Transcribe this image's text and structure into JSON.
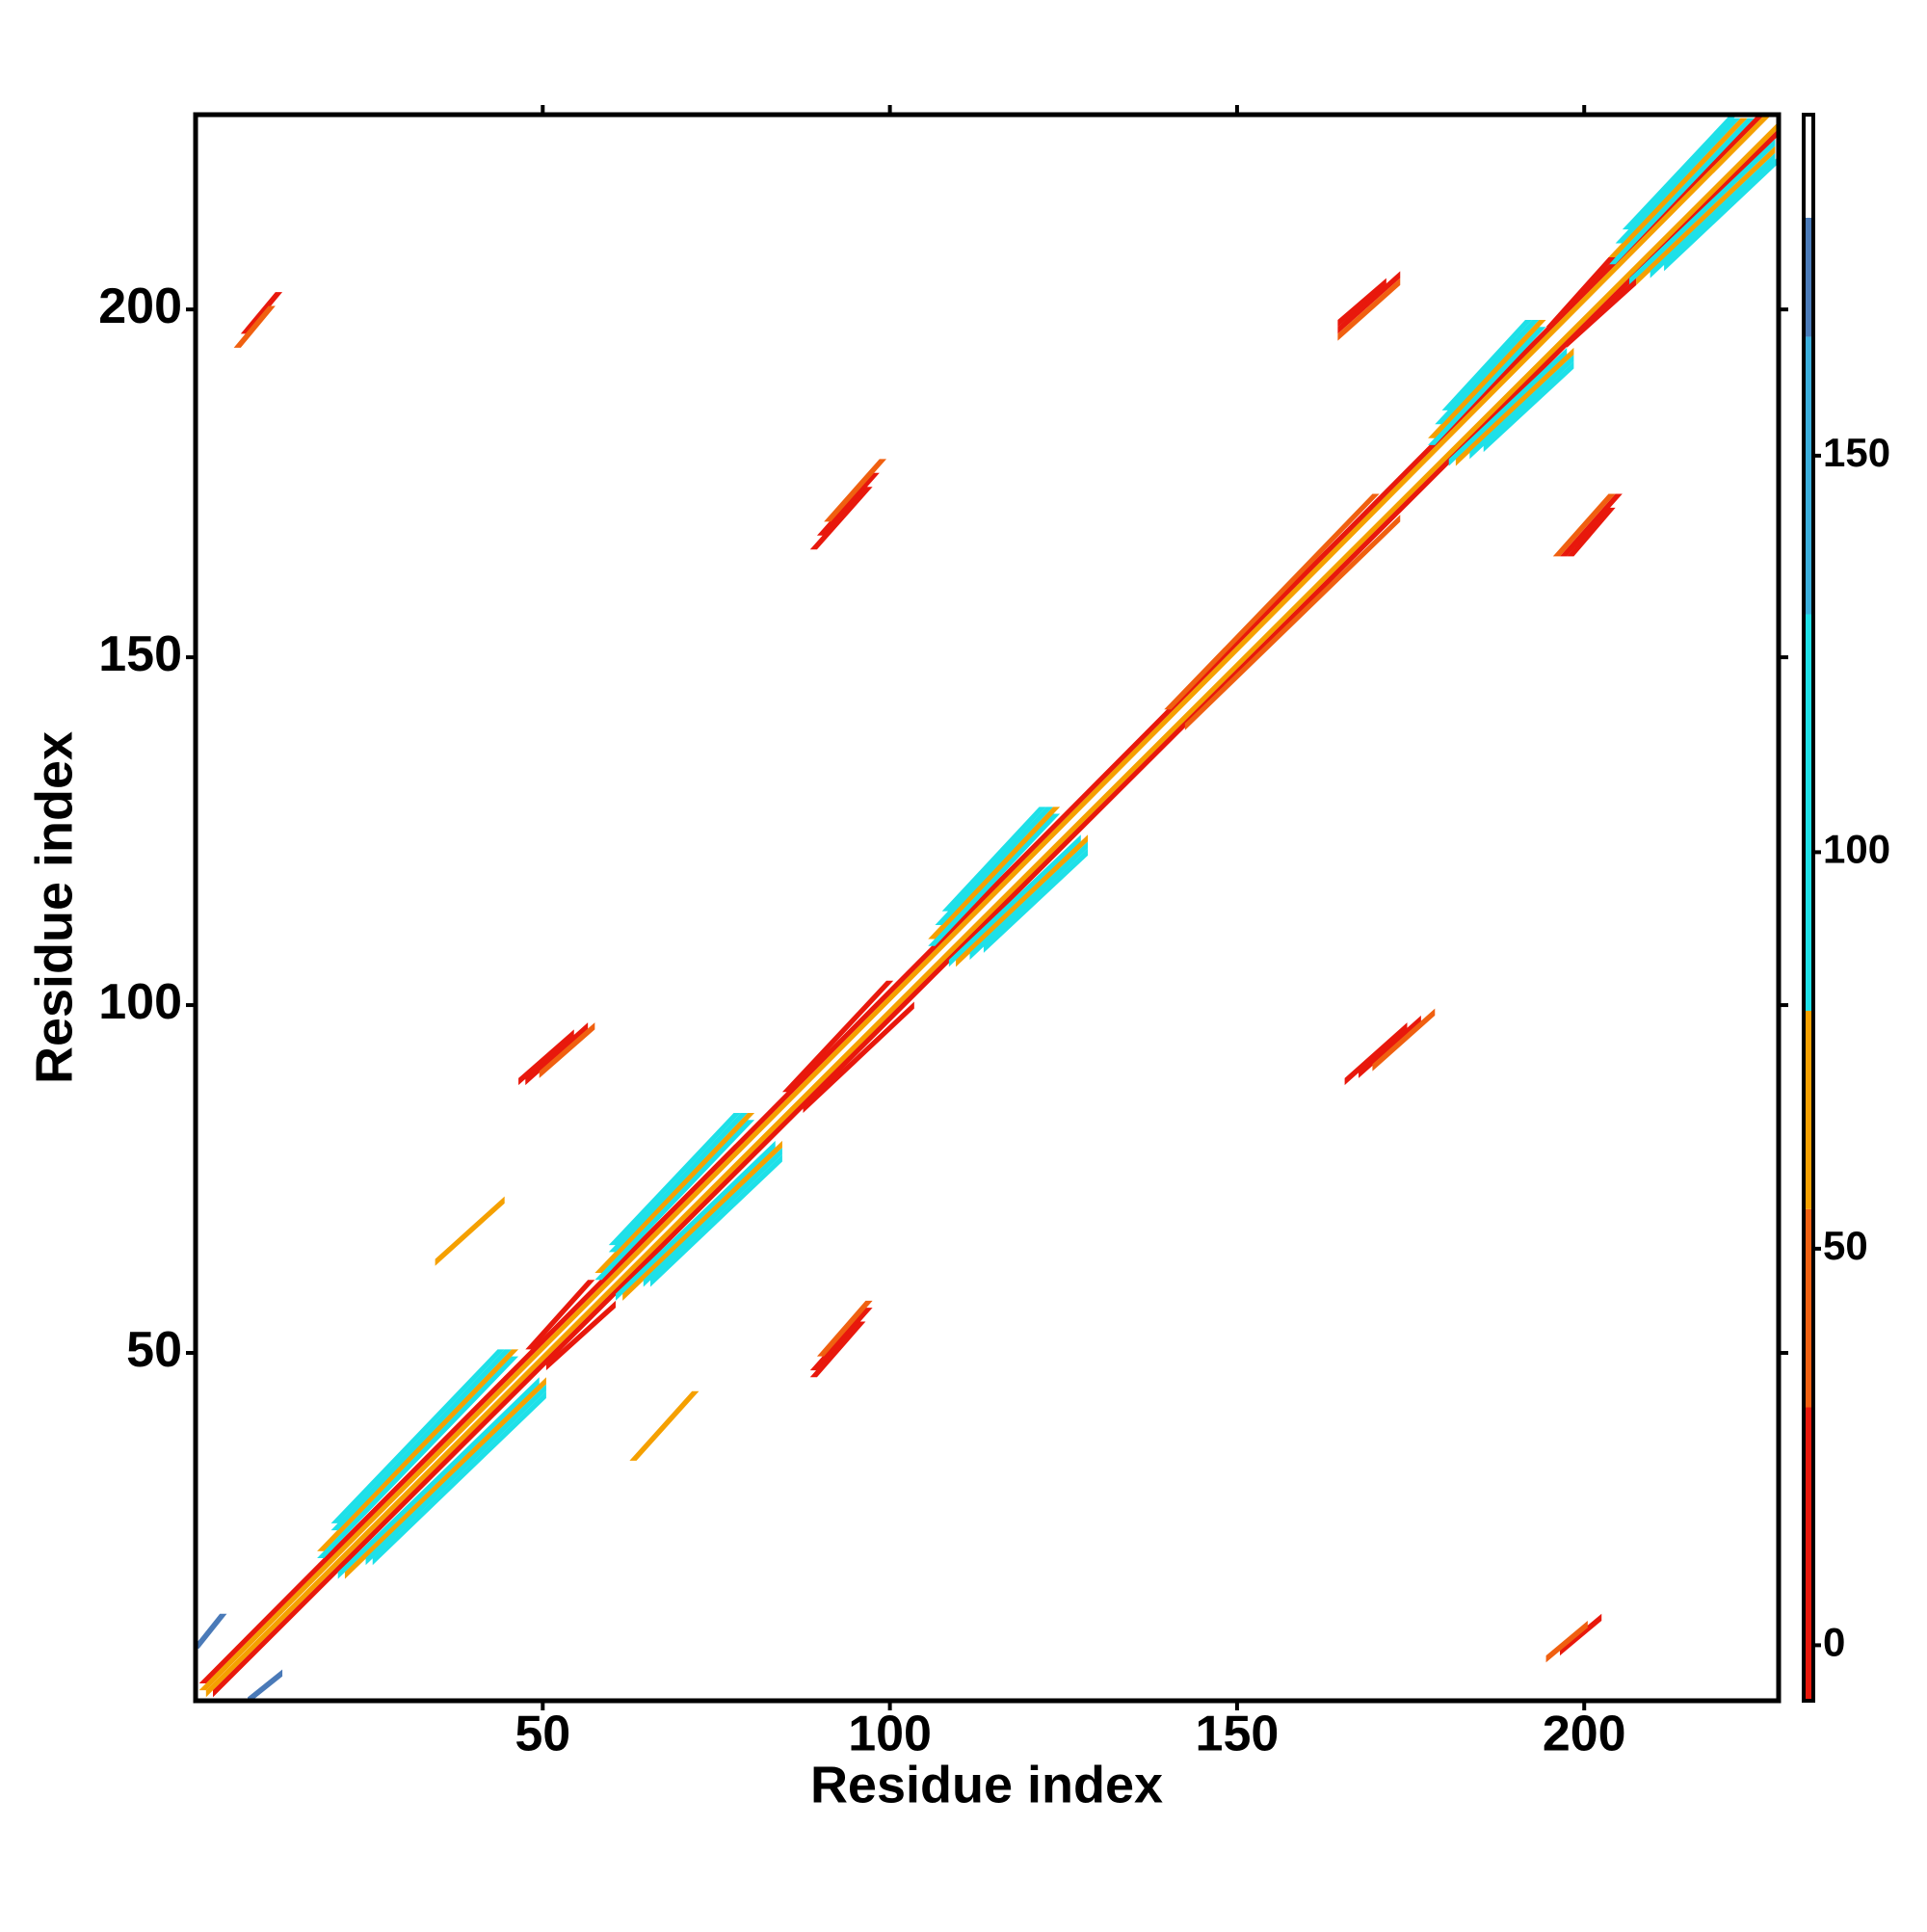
{
  "chart_data": {
    "type": "heatmap",
    "xlabel": "Residue index",
    "ylabel": "Residue index",
    "xlim": [
      0,
      228
    ],
    "ylim": [
      0,
      228
    ],
    "xticks": [
      50,
      100,
      150,
      200
    ],
    "yticks": [
      50,
      100,
      150,
      200
    ],
    "colorbar": {
      "lim": [
        -7,
        193
      ],
      "ticks": [
        0,
        50,
        100,
        150
      ],
      "segments": [
        {
          "from": -7,
          "to": 30,
          "color": "#e8180c"
        },
        {
          "from": 30,
          "to": 55,
          "color": "#f06010"
        },
        {
          "from": 55,
          "to": 80,
          "color": "#f5a000"
        },
        {
          "from": 80,
          "to": 130,
          "color": "#1ee0e8"
        },
        {
          "from": 130,
          "to": 165,
          "color": "#3aaedc"
        },
        {
          "from": 165,
          "to": 180,
          "color": "#4a7ab8"
        },
        {
          "from": 180,
          "to": 193,
          "color": "#ffffff"
        }
      ]
    },
    "stripes": [
      {
        "start": 1,
        "end": 227,
        "offset": 1,
        "value": 60
      },
      {
        "start": 1,
        "end": 226,
        "offset": 2,
        "value": 15
      },
      {
        "start": 18,
        "end": 46,
        "offset": 3,
        "value": 100
      },
      {
        "start": 58,
        "end": 80,
        "offset": 3,
        "value": 100
      },
      {
        "start": 106,
        "end": 124,
        "offset": 3,
        "value": 100
      },
      {
        "start": 178,
        "end": 194,
        "offset": 3,
        "value": 100
      },
      {
        "start": 204,
        "end": 224,
        "offset": 3,
        "value": 100
      },
      {
        "start": 48,
        "end": 57,
        "offset": 3,
        "value": 5
      },
      {
        "start": 85,
        "end": 100,
        "offset": 3,
        "value": 5
      },
      {
        "start": 140,
        "end": 170,
        "offset": 3,
        "value": 40
      },
      {
        "start": 195,
        "end": 204,
        "offset": 3,
        "value": 5
      },
      {
        "start": 18,
        "end": 46,
        "offset": 4,
        "value": 70
      },
      {
        "start": 58,
        "end": 80,
        "offset": 4,
        "value": 70
      },
      {
        "start": 106,
        "end": 124,
        "offset": 4,
        "value": 70
      },
      {
        "start": 178,
        "end": 194,
        "offset": 4,
        "value": 70
      },
      {
        "start": 204,
        "end": 223,
        "offset": 4,
        "value": 70
      },
      {
        "start": 20,
        "end": 45,
        "offset": 5,
        "value": 110
      },
      {
        "start": 60,
        "end": 79,
        "offset": 5,
        "value": 110
      },
      {
        "start": 107,
        "end": 123,
        "offset": 5,
        "value": 110
      },
      {
        "start": 179,
        "end": 193,
        "offset": 5,
        "value": 110
      },
      {
        "start": 205,
        "end": 222,
        "offset": 5,
        "value": 110
      },
      {
        "start": 20,
        "end": 44,
        "offset": 6,
        "value": 120
      },
      {
        "start": 60,
        "end": 78,
        "offset": 6,
        "value": 120
      },
      {
        "start": 108,
        "end": 122,
        "offset": 6,
        "value": 120
      },
      {
        "start": 180,
        "end": 192,
        "offset": 6,
        "value": 120
      },
      {
        "start": 206,
        "end": 222,
        "offset": 6,
        "value": 120
      },
      {
        "start": 0,
        "end": 4,
        "offset": 8,
        "value": 170
      },
      {
        "start": 89,
        "end": 97,
        "offset": -41,
        "value": 5
      },
      {
        "start": 89,
        "end": 96,
        "offset": -42,
        "value": 20
      },
      {
        "start": 90,
        "end": 97,
        "offset": -40,
        "value": 40
      },
      {
        "start": 90,
        "end": 98,
        "offset": 78,
        "value": 5
      },
      {
        "start": 89,
        "end": 97,
        "offset": 77,
        "value": 20
      },
      {
        "start": 91,
        "end": 99,
        "offset": 79,
        "value": 40
      },
      {
        "start": 197,
        "end": 205,
        "offset": -32,
        "value": 5
      },
      {
        "start": 198,
        "end": 204,
        "offset": -33,
        "value": 20
      },
      {
        "start": 196,
        "end": 204,
        "offset": -31,
        "value": 40
      },
      {
        "start": 7,
        "end": 12,
        "offset": 190,
        "value": 5
      },
      {
        "start": 6,
        "end": 11,
        "offset": 189,
        "value": 40
      },
      {
        "start": 63,
        "end": 72,
        "offset": -28,
        "value": 65
      }
    ]
  }
}
